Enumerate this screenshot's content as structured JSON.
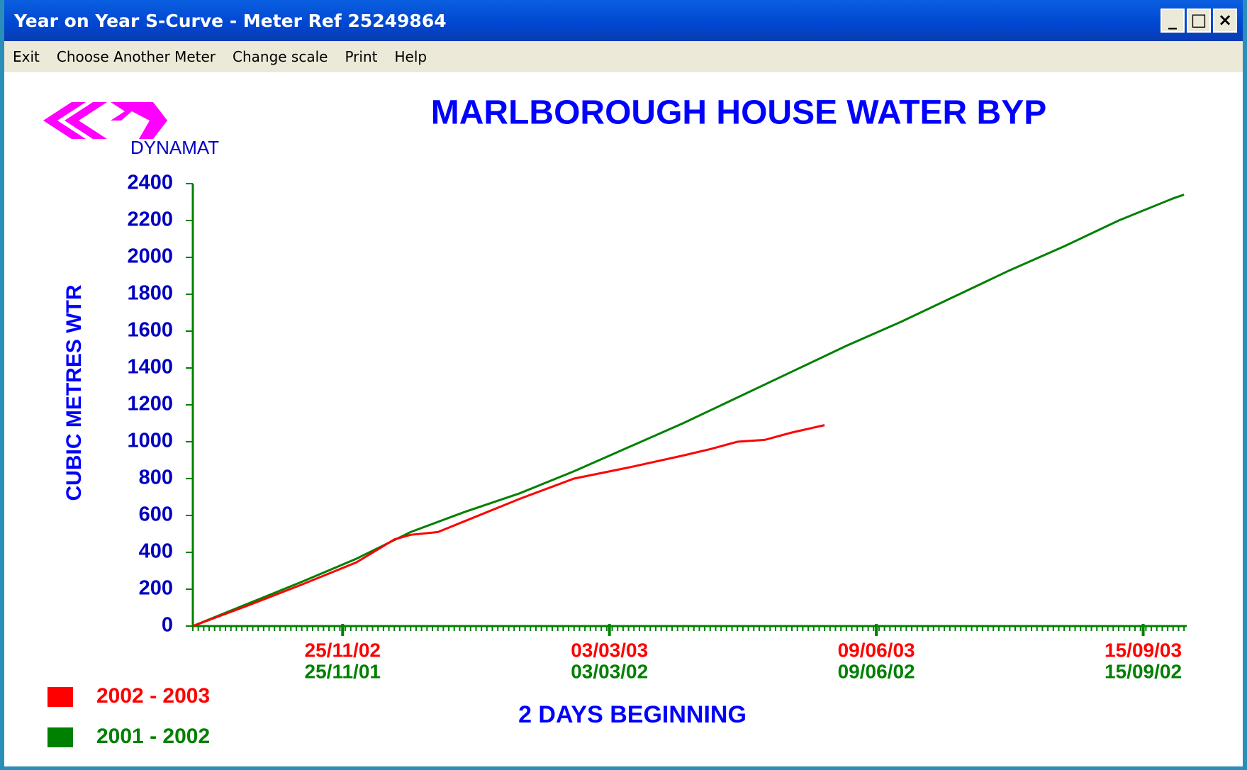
{
  "window": {
    "title": "Year on Year S-Curve - Meter Ref 25249864",
    "menu": [
      "Exit",
      "Choose Another Meter",
      "Change scale",
      "Print",
      "Help"
    ]
  },
  "logo": "DYNAMAT",
  "chart_data": {
    "type": "line",
    "title": "MARLBOROUGH HOUSE WATER BYP",
    "ylabel": "CUBIC METRES WTR",
    "xlabel": "2 DAYS BEGINNING",
    "xlim": [
      0,
      182.5
    ],
    "ylim": [
      0,
      2400
    ],
    "yticks": [
      0,
      200,
      400,
      600,
      800,
      1000,
      1200,
      1400,
      1600,
      1800,
      2000,
      2200,
      2400
    ],
    "xticks": [
      {
        "value": 27.5,
        "label": "25/11/02"
      },
      {
        "value": 76.5,
        "label": "03/03/03"
      },
      {
        "value": 125.5,
        "label": "09/06/03"
      },
      {
        "value": 174.5,
        "label": "15/09/03"
      }
    ],
    "xtick_labels_2": [
      "25/11/01",
      "03/03/02",
      "09/06/02",
      "15/09/02"
    ],
    "xminor_step": 1,
    "axis_color": "#008000",
    "series": [
      {
        "name": "2002 - 2003",
        "color": "#ff0000",
        "x": [
          0,
          10,
          20,
          30,
          37,
          40,
          45,
          50,
          60,
          70,
          80,
          90,
          95,
          100,
          105,
          110,
          116
        ],
        "values": [
          0,
          110,
          225,
          345,
          470,
          495,
          510,
          570,
          690,
          800,
          860,
          925,
          960,
          1000,
          1010,
          1050,
          1090
        ]
      },
      {
        "name": "2001 - 2002",
        "color": "#008000",
        "x": [
          0,
          10,
          20,
          30,
          40,
          50,
          60,
          70,
          80,
          90,
          100,
          110,
          120,
          130,
          140,
          150,
          160,
          170,
          180,
          182
        ],
        "values": [
          0,
          120,
          240,
          365,
          510,
          620,
          720,
          840,
          970,
          1100,
          1240,
          1380,
          1520,
          1650,
          1790,
          1930,
          2060,
          2200,
          2320,
          2340
        ]
      }
    ]
  }
}
